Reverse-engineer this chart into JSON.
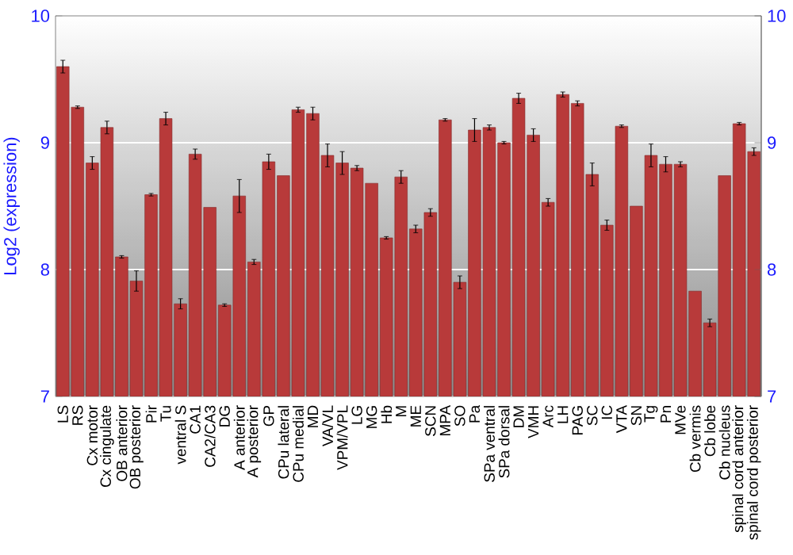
{
  "chart_data": {
    "type": "bar",
    "ylabel": "Log2 (expression)",
    "categories": [
      "LS",
      "RS",
      "Cx motor",
      "Cx cingulate",
      "OB anterior",
      "OB posterior",
      "Pir",
      "Tu",
      "ventral S",
      "CA1",
      "CA2/CA3",
      "DG",
      "A anterior",
      "A posterior",
      "GP",
      "CPu lateral",
      "CPu medial",
      "MD",
      "VA/VL",
      "VPM/VPL",
      "LG",
      "MG",
      "Hb",
      "M",
      "ME",
      "SCN",
      "MPA",
      "SO",
      "Pa",
      "SPa ventral",
      "SPa dorsal",
      "DM",
      "VMH",
      "Arc",
      "LH",
      "PAG",
      "SC",
      "IC",
      "VTA",
      "SN",
      "Tg",
      "Pn",
      "MVe",
      "Cb vermis",
      "Cb lobe",
      "Cb nucleus",
      "spinal cord anterior",
      "spinal cord posterior"
    ],
    "values": [
      9.6,
      9.28,
      8.84,
      9.12,
      8.1,
      7.91,
      8.59,
      9.19,
      7.73,
      8.91,
      8.49,
      7.72,
      8.58,
      8.06,
      8.85,
      8.74,
      9.26,
      9.23,
      8.9,
      8.84,
      8.8,
      8.68,
      8.25,
      8.73,
      8.32,
      8.45,
      9.18,
      7.9,
      9.1,
      9.12,
      9.0,
      9.35,
      9.06,
      8.53,
      9.38,
      9.31,
      8.75,
      8.35,
      9.13,
      8.5,
      8.9,
      8.83,
      8.83,
      7.83,
      7.58,
      8.74,
      9.15,
      8.93
    ],
    "errors": [
      0.05,
      0.01,
      0.05,
      0.05,
      0.01,
      0.08,
      0.01,
      0.05,
      0.04,
      0.04,
      null,
      0.01,
      0.13,
      0.02,
      0.06,
      null,
      0.02,
      0.05,
      0.09,
      0.09,
      0.02,
      null,
      0.01,
      0.05,
      0.03,
      0.03,
      0.01,
      0.05,
      0.09,
      0.02,
      0.01,
      0.04,
      0.05,
      0.03,
      0.02,
      0.02,
      0.09,
      0.04,
      0.01,
      null,
      0.09,
      0.06,
      0.02,
      null,
      0.03,
      null,
      0.01,
      0.03
    ],
    "color": "#b83a3a",
    "ylim": [
      7,
      10
    ],
    "yticks": [
      7,
      8,
      9,
      10
    ],
    "y2lim": [
      7,
      10
    ],
    "y2ticks": [
      7,
      8,
      9,
      10
    ],
    "grid": "y"
  }
}
